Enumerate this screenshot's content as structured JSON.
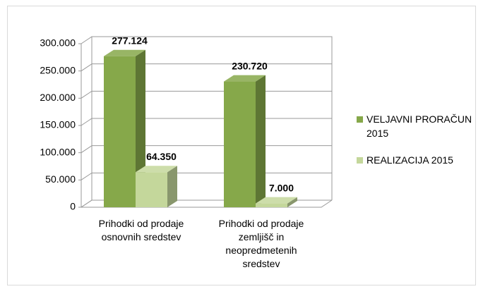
{
  "chart_data": {
    "type": "bar3d",
    "categories": [
      "Prihodki od prodaje osnovnih sredstev",
      "Prihodki od prodaje zemljišč in neopredmetenih sredstev"
    ],
    "series": [
      {
        "name": "VELJAVNI PRORAČUN 2015",
        "color": "#86a84a",
        "values": [
          277124,
          230720
        ],
        "value_labels": [
          "277.124",
          "230.720"
        ]
      },
      {
        "name": "REALIZACIJA 2015",
        "color": "#c4d79b",
        "values": [
          64350,
          7000
        ],
        "value_labels": [
          "64.350",
          "7.000"
        ]
      }
    ],
    "ylim": [
      0,
      300000
    ],
    "yticks": [
      0,
      {
        "value": 50000,
        "label": "50.000"
      },
      {
        "value": 100000,
        "label": "100.000"
      },
      {
        "value": 150000,
        "label": "150.000"
      },
      {
        "value": 200000,
        "label": "200.000"
      },
      {
        "value": 250000,
        "label": "250.000"
      },
      {
        "value": 300000,
        "label": "300.000"
      }
    ],
    "grid": true,
    "legend": "right"
  }
}
